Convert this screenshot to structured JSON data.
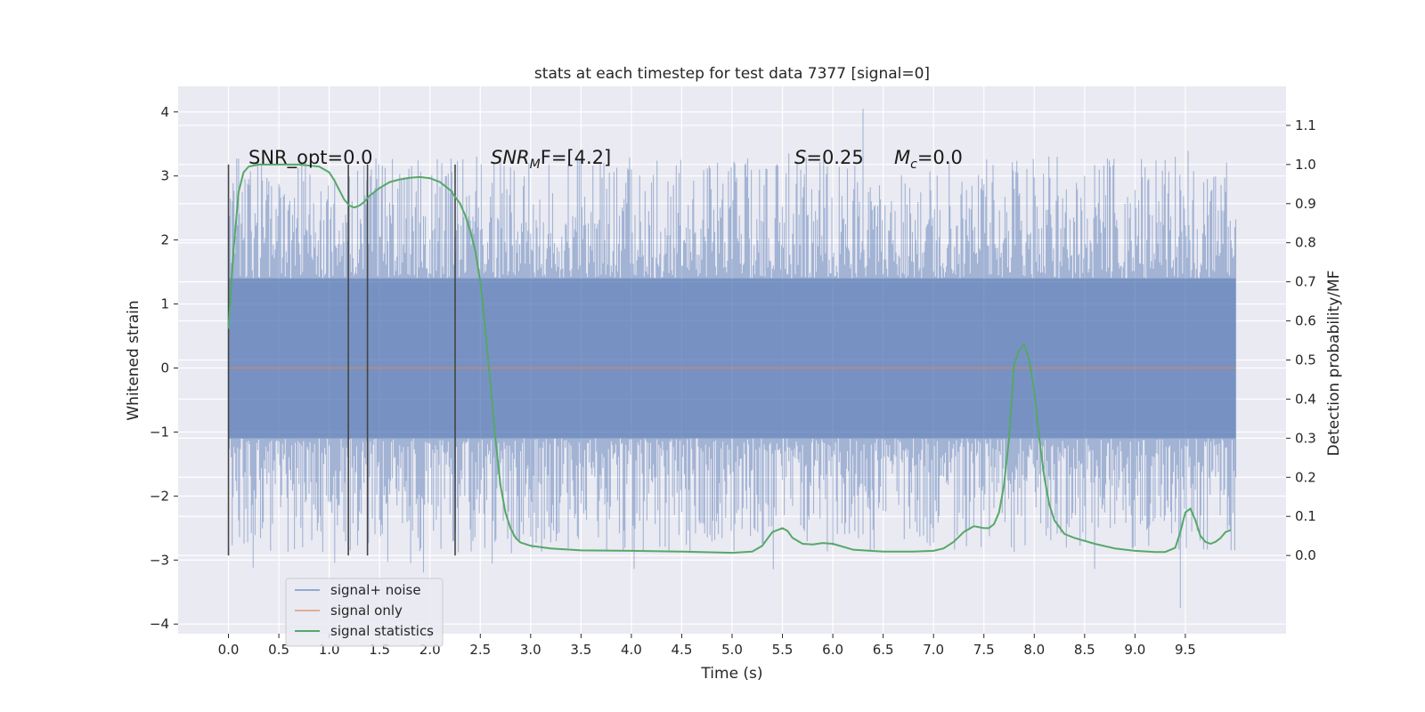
{
  "chart_data": {
    "type": "line",
    "title": "stats at each timestep for test data 7377 [signal=0]",
    "xlabel": "Time (s)",
    "ylabel_left": "Whitened strain",
    "ylabel_right": "Detection probability/MF",
    "xlim": [
      -0.5,
      10.5
    ],
    "ylim_left": [
      -4.15,
      4.4
    ],
    "ylim_right": [
      -0.2,
      1.2
    ],
    "x_ticks": [
      "0.0",
      "0.5",
      "1.0",
      "1.5",
      "2.0",
      "2.5",
      "3.0",
      "3.5",
      "4.0",
      "4.5",
      "5.0",
      "5.5",
      "6.0",
      "6.5",
      "7.0",
      "7.5",
      "8.0",
      "8.5",
      "9.0",
      "9.5"
    ],
    "y_ticks_left": [
      "−4",
      "−3",
      "−2",
      "−1",
      "0",
      "1",
      "2",
      "3",
      "4"
    ],
    "y_ticks_right": [
      "0.0",
      "0.1",
      "0.2",
      "0.3",
      "0.4",
      "0.5",
      "0.6",
      "0.7",
      "0.8",
      "0.9",
      "1.0",
      "1.1"
    ],
    "grid": true,
    "legend_position": "lower-left",
    "annotations": {
      "snr_opt": "SNR_opt=0.0",
      "snr_mf_main": "SNR",
      "snr_mf_sub": "M",
      "snr_mf_rest": "F=[4.2]",
      "s_main": "S",
      "s_rest": "=0.25",
      "mc_main": "M",
      "mc_sub": "c",
      "mc_rest": "=0.0"
    },
    "vertical_markers": [
      0.0,
      1.19,
      1.38,
      2.25
    ],
    "series": [
      {
        "name": "signal+ noise",
        "color": "#4c72b0",
        "style": "noise band",
        "x_range": [
          0.0,
          10.0
        ],
        "band_dense": [
          -1.1,
          1.4
        ],
        "typical_extent": [
          -2.3,
          2.7
        ],
        "extreme_max": 4.05,
        "extreme_min": -3.75
      },
      {
        "name": "signal only",
        "color": "#dd8452",
        "x": [
          0.0,
          10.0
        ],
        "values": [
          0.0,
          0.0
        ]
      },
      {
        "name": "signal statistics",
        "color": "#55a868",
        "axis": "right",
        "x": [
          0.0,
          0.05,
          0.1,
          0.15,
          0.2,
          0.3,
          0.5,
          0.7,
          0.9,
          1.0,
          1.05,
          1.1,
          1.15,
          1.2,
          1.25,
          1.3,
          1.35,
          1.4,
          1.5,
          1.6,
          1.7,
          1.8,
          1.9,
          2.0,
          2.1,
          2.2,
          2.3,
          2.35,
          2.4,
          2.45,
          2.5,
          2.55,
          2.6,
          2.65,
          2.7,
          2.75,
          2.8,
          2.85,
          2.9,
          3.0,
          3.2,
          3.5,
          4.0,
          4.5,
          5.0,
          5.2,
          5.3,
          5.4,
          5.5,
          5.55,
          5.6,
          5.7,
          5.8,
          5.9,
          6.0,
          6.2,
          6.5,
          6.8,
          7.0,
          7.1,
          7.2,
          7.3,
          7.4,
          7.5,
          7.55,
          7.6,
          7.65,
          7.7,
          7.75,
          7.8,
          7.85,
          7.9,
          7.95,
          8.0,
          8.05,
          8.1,
          8.15,
          8.2,
          8.3,
          8.4,
          8.6,
          8.8,
          9.0,
          9.2,
          9.3,
          9.4,
          9.45,
          9.5,
          9.55,
          9.6,
          9.65,
          9.7,
          9.75,
          9.8,
          9.85,
          9.9,
          9.95
        ],
        "values": [
          0.58,
          0.78,
          0.93,
          0.98,
          0.995,
          1.0,
          1.0,
          1.0,
          0.995,
          0.98,
          0.96,
          0.935,
          0.91,
          0.895,
          0.89,
          0.895,
          0.905,
          0.92,
          0.94,
          0.955,
          0.962,
          0.966,
          0.968,
          0.965,
          0.955,
          0.935,
          0.9,
          0.87,
          0.83,
          0.78,
          0.7,
          0.58,
          0.44,
          0.3,
          0.18,
          0.11,
          0.07,
          0.045,
          0.033,
          0.025,
          0.018,
          0.013,
          0.012,
          0.01,
          0.007,
          0.01,
          0.025,
          0.06,
          0.07,
          0.063,
          0.045,
          0.03,
          0.028,
          0.032,
          0.03,
          0.015,
          0.01,
          0.01,
          0.012,
          0.018,
          0.035,
          0.06,
          0.075,
          0.07,
          0.07,
          0.08,
          0.11,
          0.18,
          0.3,
          0.49,
          0.525,
          0.54,
          0.5,
          0.42,
          0.3,
          0.2,
          0.13,
          0.09,
          0.055,
          0.045,
          0.03,
          0.018,
          0.012,
          0.009,
          0.009,
          0.02,
          0.06,
          0.11,
          0.12,
          0.09,
          0.05,
          0.035,
          0.03,
          0.035,
          0.045,
          0.06,
          0.065
        ]
      }
    ]
  }
}
